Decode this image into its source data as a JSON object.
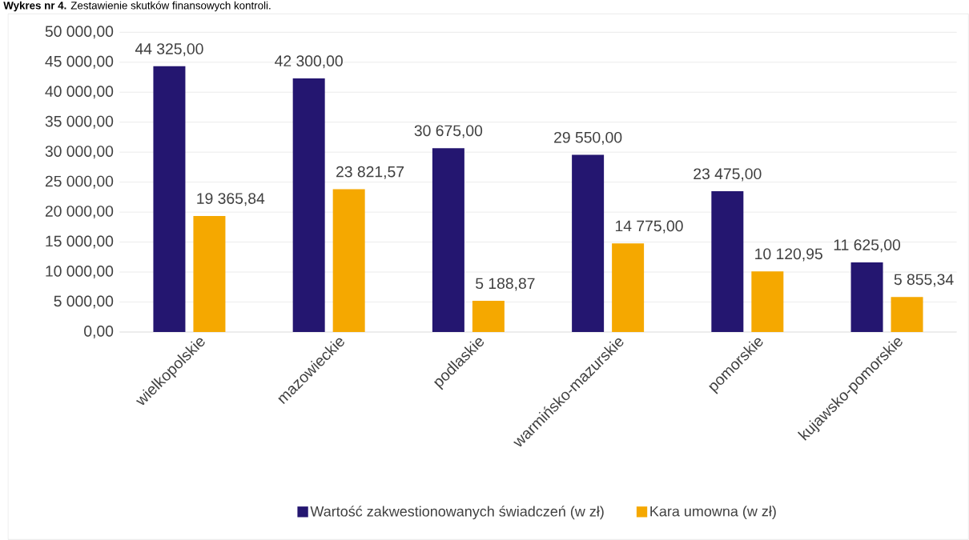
{
  "chart_data": {
    "type": "bar",
    "title": "**Wykres nr 4.** Zestawienie skutków finansowych kontroli.",
    "categories": [
      "wielkopolskie",
      "mazowieckie",
      "podlaskie",
      "warmińsko-mazurskie",
      "pomorskie",
      "kujawsko-pomorskie"
    ],
    "series": [
      {
        "name": "Wartość zakwestionowanych świadczeń (w zł)",
        "color": "#241670",
        "values": [
          44325.0,
          42300.0,
          30675.0,
          29550.0,
          23475.0,
          11625.0
        ],
        "value_labels": [
          "44 325,00",
          "42 300,00",
          "30 675,00",
          "29 550,00",
          "23 475,00",
          "11 625,00"
        ]
      },
      {
        "name": "Kara umowna (w zł)",
        "color": "#f5a800",
        "values": [
          19365.84,
          23821.57,
          5188.87,
          14775.0,
          10120.95,
          5855.34
        ],
        "value_labels": [
          "19 365,84",
          "23 821,57",
          "5 188,87",
          "14 775,00",
          "10 120,95",
          "5 855,34"
        ]
      }
    ],
    "ylim": [
      0,
      50000
    ],
    "yticks": [
      {
        "value": 0,
        "label": "0,00"
      },
      {
        "value": 5000,
        "label": "5 000,00"
      },
      {
        "value": 10000,
        "label": "10 000,00"
      },
      {
        "value": 15000,
        "label": "15 000,00"
      },
      {
        "value": 20000,
        "label": "20 000,00"
      },
      {
        "value": 25000,
        "label": "25 000,00"
      },
      {
        "value": 30000,
        "label": "30 000,00"
      },
      {
        "value": 35000,
        "label": "35 000,00"
      },
      {
        "value": 40000,
        "label": "40 000,00"
      },
      {
        "value": 45000,
        "label": "45 000,00"
      },
      {
        "value": 50000,
        "label": "50 000,00"
      }
    ],
    "grid": "y",
    "legend": "bottom"
  }
}
